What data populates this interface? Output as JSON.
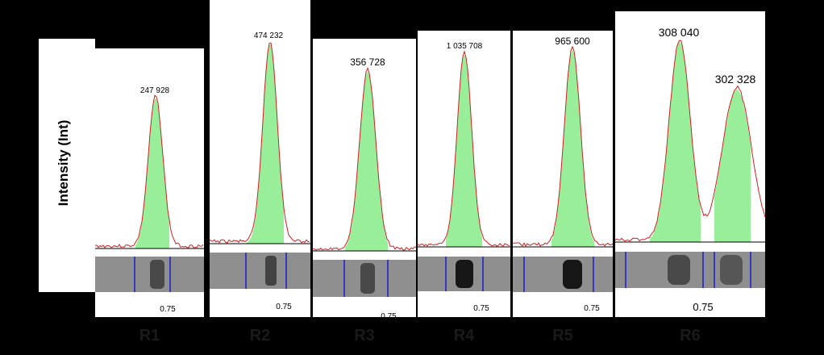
{
  "chart_data": {
    "type": "area",
    "ylabel": "Intensity (Int)",
    "tick_label": "0.75",
    "colors": {
      "fill": "#99ee99",
      "profile_line": "#cc2222",
      "marker_line": "#1a1acc",
      "gel_background": "#8f8f8f",
      "figure_background": "#000000"
    },
    "panels": [
      {
        "lane": "R1",
        "peaks": [
          {
            "value": 247928,
            "label": "247 928"
          }
        ]
      },
      {
        "lane": "R2",
        "peaks": [
          {
            "value": 474232,
            "label": "474 232"
          }
        ]
      },
      {
        "lane": "R3",
        "peaks": [
          {
            "value": 356728,
            "label": "356 728"
          }
        ]
      },
      {
        "lane": "R4",
        "peaks": [
          {
            "value": 1035708,
            "label": "1 035 708"
          }
        ]
      },
      {
        "lane": "R5",
        "peaks": [
          {
            "value": 965600,
            "label": "965 600"
          }
        ]
      },
      {
        "lane": "R6",
        "peaks": [
          {
            "value": 308040,
            "label": "308 040"
          },
          {
            "value": 302328,
            "label": "302 328"
          }
        ]
      }
    ]
  }
}
